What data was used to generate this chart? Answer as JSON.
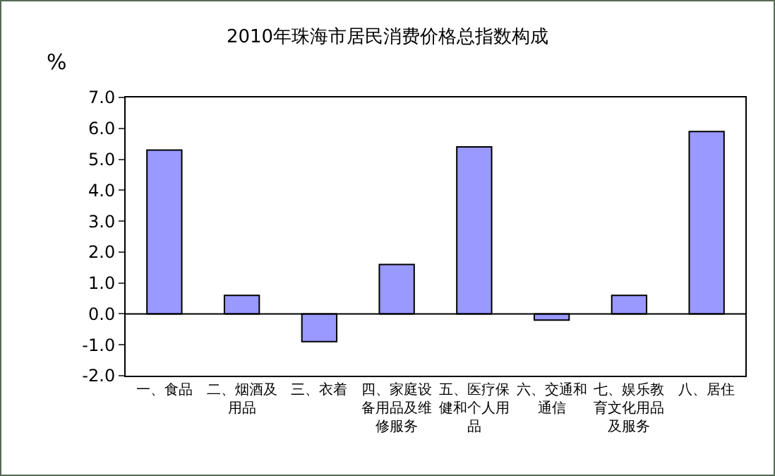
{
  "chart_data": {
    "type": "bar",
    "title": "2010年珠海市居民消费价格总指数构成",
    "ylabel": "%",
    "categories": [
      "一、食品",
      "二、烟酒及用品",
      "三、衣着",
      "四、家庭设备用品及维修服务",
      "五、医疗保健和个人用品",
      "六、交通和通信",
      "七、娱乐教育文化用品及服务",
      "八、居住"
    ],
    "values": [
      5.3,
      0.6,
      -0.9,
      1.6,
      5.4,
      -0.2,
      0.6,
      5.9
    ],
    "color": "#9999ff",
    "ylim": [
      -2,
      7
    ],
    "yticks": [
      {
        "value": -2,
        "label": "-2.0"
      },
      {
        "value": -1,
        "label": "-1.0"
      },
      {
        "value": 0,
        "label": "0.0"
      },
      {
        "value": 1,
        "label": "1.0"
      },
      {
        "value": 2,
        "label": "2.0"
      },
      {
        "value": 3,
        "label": "3.0"
      },
      {
        "value": 4,
        "label": "4.0"
      },
      {
        "value": 5,
        "label": "5.0"
      },
      {
        "value": 6,
        "label": "6.0"
      },
      {
        "value": 7,
        "label": "7.0"
      }
    ],
    "ref_lines": [
      {
        "axis": "y",
        "value": 0,
        "color": "#000000"
      }
    ],
    "grid": false
  }
}
